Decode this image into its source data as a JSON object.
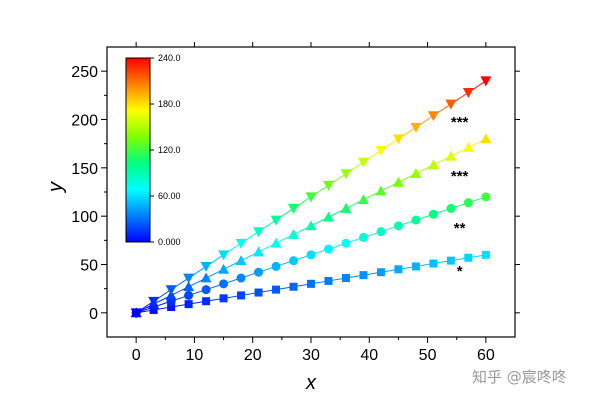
{
  "chart_data": {
    "type": "scatter",
    "xlabel": "x",
    "ylabel": "y",
    "xlim": [
      -5,
      65
    ],
    "ylim": [
      -25,
      275
    ],
    "xticks": [
      0,
      10,
      20,
      30,
      40,
      50,
      60
    ],
    "yticks": [
      0,
      50,
      100,
      150,
      200,
      250
    ],
    "grid": false,
    "x": [
      0,
      3,
      6,
      9,
      12,
      15,
      18,
      21,
      24,
      27,
      30,
      33,
      36,
      39,
      42,
      45,
      48,
      51,
      54,
      57,
      60
    ],
    "series": [
      {
        "marker": "square",
        "slope": 1,
        "annotation": "*",
        "values": [
          0,
          3,
          6,
          9,
          12,
          15,
          18,
          21,
          24,
          27,
          30,
          33,
          36,
          39,
          42,
          45,
          48,
          51,
          54,
          57,
          60
        ]
      },
      {
        "marker": "circle",
        "slope": 2,
        "annotation": "**",
        "values": [
          0,
          6,
          12,
          18,
          24,
          30,
          36,
          42,
          48,
          54,
          60,
          66,
          72,
          78,
          84,
          90,
          96,
          102,
          108,
          114,
          120
        ]
      },
      {
        "marker": "triangle-up",
        "slope": 3,
        "annotation": "***",
        "values": [
          0,
          9,
          18,
          27,
          36,
          45,
          54,
          63,
          72,
          81,
          90,
          99,
          108,
          117,
          126,
          135,
          144,
          153,
          162,
          171,
          180
        ]
      },
      {
        "marker": "triangle-down",
        "slope": 4,
        "annotation": "***",
        "values": [
          0,
          12,
          24,
          36,
          48,
          60,
          72,
          84,
          96,
          108,
          120,
          132,
          144,
          156,
          168,
          180,
          192,
          204,
          216,
          228,
          240
        ]
      }
    ],
    "colorbar": {
      "range": [
        0,
        240
      ],
      "labels": [
        "240.0",
        "180.0",
        "120.0",
        "60.00",
        "0.000"
      ],
      "values": [
        240,
        180,
        120,
        60,
        0
      ],
      "colormap": [
        "#0000ff",
        "#0080ff",
        "#00ffff",
        "#00ff80",
        "#80ff00",
        "#ffff00",
        "#ff8000",
        "#ff0000"
      ]
    }
  },
  "watermark": "知乎 @宸咚咚"
}
